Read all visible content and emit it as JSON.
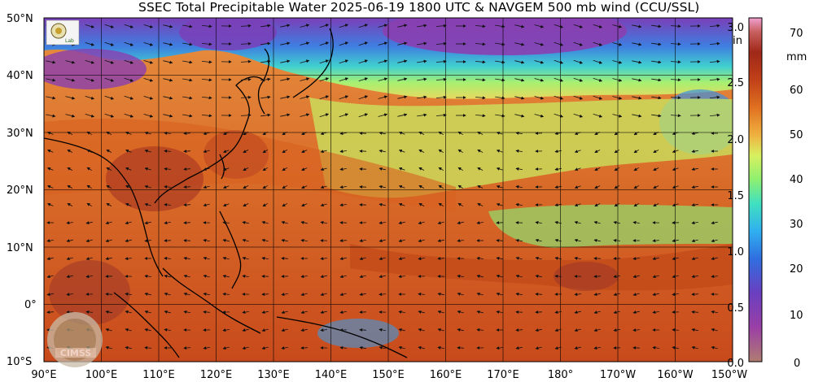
{
  "title": "SSEC Total Precipitable Water  2025-06-19 1800 UTC & NAVGEM 500 mb wind (CCU/SSL)",
  "map": {
    "lat_labels": [
      "50°N",
      "40°N",
      "30°N",
      "20°N",
      "10°N",
      "0°",
      "10°S"
    ],
    "lon_labels": [
      "90°E",
      "100°E",
      "110°E",
      "120°E",
      "130°E",
      "140°E",
      "150°E",
      "160°E",
      "170°E",
      "180°",
      "170°W",
      "160°W",
      "150°W"
    ],
    "lat_range": [
      -10,
      50
    ],
    "lon_range": [
      90,
      210
    ]
  },
  "colorbar": {
    "inch_ticks": [
      "3.0",
      "2.5",
      "2.0",
      "1.5",
      "1.0",
      "0.5",
      "0.0"
    ],
    "inch_unit": "in",
    "mm_ticks": [
      "70",
      "60",
      "50",
      "40",
      "30",
      "20",
      "10",
      "0"
    ],
    "mm_unit": "mm",
    "colors": [
      "#b07c70",
      "#9a3fa6",
      "#6a3fc0",
      "#2f6fe0",
      "#30b0f0",
      "#40e0c0",
      "#8ef070",
      "#d8f060",
      "#f0b040",
      "#e07020",
      "#c04018",
      "#a02818",
      "#c86060",
      "#f0a0d0"
    ]
  },
  "logos": {
    "top_left": "SSEC seal logo",
    "bottom_left": "CIMSS"
  }
}
